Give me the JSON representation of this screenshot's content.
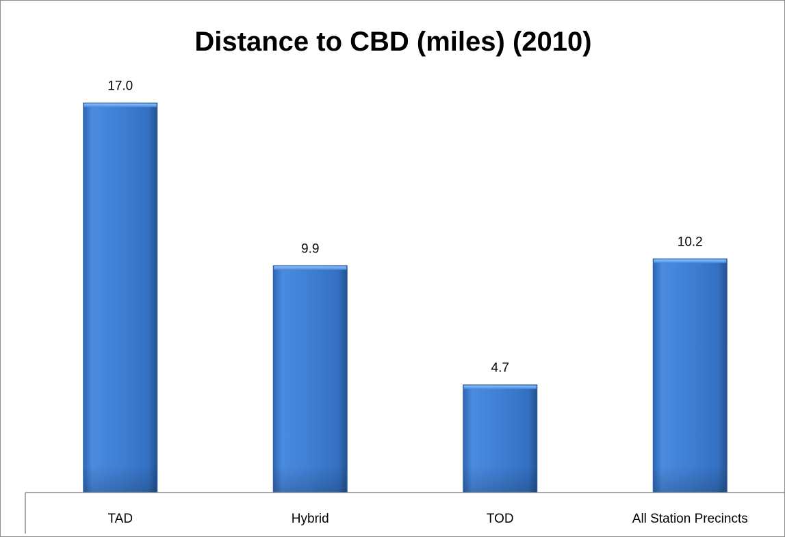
{
  "chart_data": {
    "type": "bar",
    "title": "Distance to CBD (miles) (2010)",
    "xlabel": "",
    "ylabel": "",
    "categories": [
      "TAD",
      "Hybrid",
      "TOD",
      "All Station Precincts"
    ],
    "values": [
      17.0,
      9.9,
      4.7,
      10.2
    ],
    "data_labels": [
      "17.0",
      "9.9",
      "4.7",
      "10.2"
    ],
    "ylim": [
      0,
      20
    ],
    "grid": false,
    "legend": "none",
    "colors": {
      "bar_light": "#5b9be5",
      "bar_mid": "#3f7ed0",
      "bar_dark": "#2b5da3",
      "axis": "#8c8c8c"
    }
  }
}
